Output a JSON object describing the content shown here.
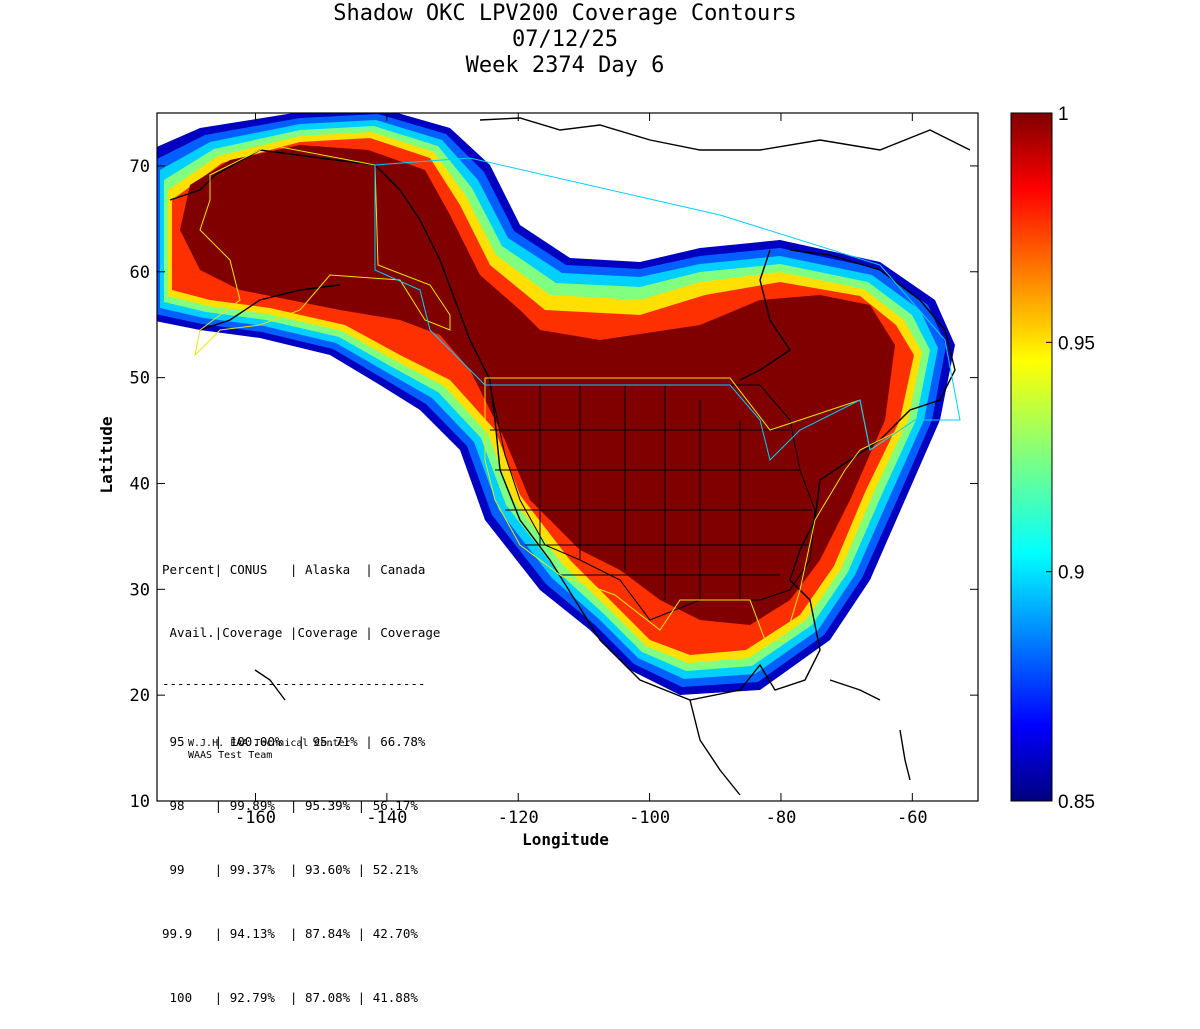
{
  "title": {
    "line1": "Shadow OKC LPV200 Coverage Contours",
    "line2": "07/12/25",
    "line3": "Week 2374 Day 6"
  },
  "chart_data": {
    "type": "map-contour",
    "xlabel": "Longitude",
    "ylabel": "Latitude",
    "xlim": [
      -175,
      -50
    ],
    "ylim": [
      10,
      75
    ],
    "xticks": [
      -160,
      -140,
      -120,
      -100,
      -80,
      -60
    ],
    "yticks": [
      10,
      20,
      30,
      40,
      50,
      60,
      70
    ],
    "colorbar": {
      "range": [
        0.85,
        1.0
      ],
      "ticks": [
        "1",
        "0.95",
        "0.9",
        "0.85"
      ],
      "tick_values": [
        1.0,
        0.95,
        0.9,
        0.85
      ]
    },
    "colors": {
      "high": "#7f0000",
      "mid_high": "#ff0000",
      "mid": "#ffff00",
      "mid_low": "#00ffff",
      "low": "#00007f"
    }
  },
  "stats_table": {
    "header1": "Percent| CONUS   | Alaska  | Canada",
    "header2": " Avail.|Coverage |Coverage | Coverage",
    "rule": "-----------------------------------",
    "rows": [
      " 95    | 100.00%  | 95.71% | 66.78%",
      " 98    | 99.89%  | 95.39% | 56.17%",
      " 99    | 99.37%  | 93.60% | 52.21%",
      "99.9   | 94.13%  | 87.84% | 42.70%",
      " 100   | 92.79%  | 87.08% | 41.88%"
    ]
  },
  "credit": {
    "line1": "W.J.H. FAA Technical Center",
    "line2": "WAAS Test Team"
  }
}
